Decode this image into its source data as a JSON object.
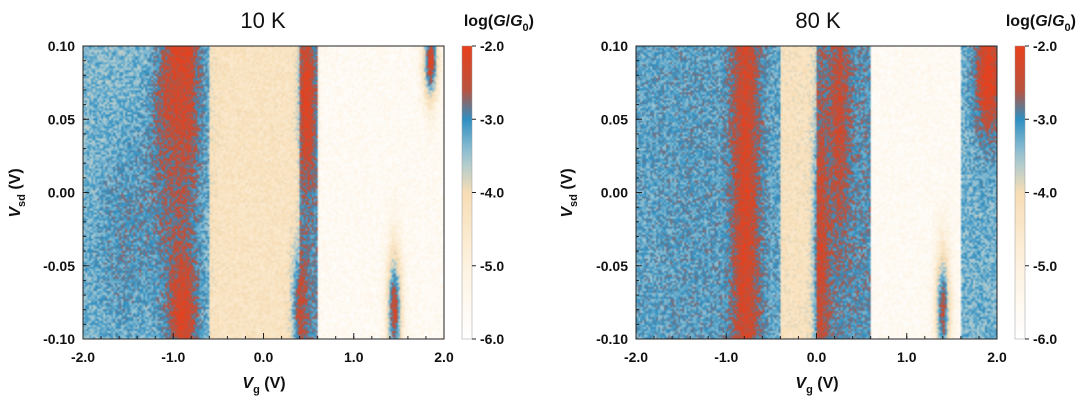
{
  "chart_data": [
    {
      "type": "heatmap",
      "title": "10 K",
      "xlabel": "V_g (V)",
      "ylabel": "V_sd (V)",
      "xlim": [
        -2.0,
        2.0
      ],
      "ylim": [
        -0.1,
        0.1
      ],
      "xticks": [
        "-2.0",
        "-1.0",
        "0.0",
        "1.0",
        "2.0"
      ],
      "yticks": [
        "-0.10",
        "-0.05",
        "0.00",
        "0.05",
        "0.10"
      ],
      "colorbar": {
        "title": "log(G/G0)",
        "range": [
          -6.0,
          -2.0
        ],
        "ticks": [
          "-2.0",
          "-3.0",
          "-4.0",
          "-5.0",
          "-6.0"
        ]
      },
      "features": [
        {
          "x": -0.95,
          "y": 0.05,
          "sigma_x": 0.16,
          "sigma_y": 0.04,
          "value": -2.0
        },
        {
          "x": -0.9,
          "y": 0.1,
          "sigma_x": 0.12,
          "sigma_y": 0.02,
          "value": -2.1
        },
        {
          "x": -1.0,
          "y": 0.0,
          "sigma_x": 0.18,
          "sigma_y": 0.05,
          "value": -2.6
        },
        {
          "x": -0.9,
          "y": -0.08,
          "sigma_x": 0.12,
          "sigma_y": 0.03,
          "value": -2.1
        },
        {
          "x": -1.5,
          "y": -0.03,
          "sigma_x": 0.3,
          "sigma_y": 0.05,
          "value": -3.0
        },
        {
          "x": 0.48,
          "y": 0.06,
          "sigma_x": 0.06,
          "sigma_y": 0.04,
          "value": -2.1
        },
        {
          "x": 0.4,
          "y": -0.08,
          "sigma_x": 0.06,
          "sigma_y": 0.03,
          "value": -2.4
        },
        {
          "x": 1.45,
          "y": -0.08,
          "sigma_x": 0.06,
          "sigma_y": 0.03,
          "value": -2.3
        },
        {
          "x": 1.85,
          "y": 0.09,
          "sigma_x": 0.06,
          "sigma_y": 0.02,
          "value": -2.1
        }
      ],
      "background": [
        {
          "x_from": -2.0,
          "x_to": -0.6,
          "value": -3.4
        },
        {
          "x_from": -0.6,
          "x_to": 0.4,
          "value": -4.3
        },
        {
          "x_from": 0.4,
          "x_to": 0.6,
          "value": -3.0
        },
        {
          "x_from": 0.6,
          "x_to": 2.0,
          "value": -5.6
        }
      ]
    },
    {
      "type": "heatmap",
      "title": "80 K",
      "xlabel": "V_g (V)",
      "ylabel": "V_sd (V)",
      "xlim": [
        -2.0,
        2.0
      ],
      "ylim": [
        -0.1,
        0.1
      ],
      "xticks": [
        "-2.0",
        "-1.0",
        "0.0",
        "1.0",
        "2.0"
      ],
      "yticks": [
        "-0.10",
        "-0.05",
        "0.00",
        "0.05",
        "0.10"
      ],
      "colorbar": {
        "title": "log(G/G0)",
        "range": [
          -6.0,
          -2.0
        ],
        "ticks": [
          "-2.0",
          "-3.0",
          "-4.0",
          "-5.0",
          "-6.0"
        ]
      },
      "features": [
        {
          "x": -0.8,
          "y": 0.0,
          "sigma_x": 0.12,
          "sigma_y": 0.2,
          "value": -2.1
        },
        {
          "x": 0.05,
          "y": -0.04,
          "sigma_x": 0.06,
          "sigma_y": 0.08,
          "value": -2.3
        },
        {
          "x": 0.25,
          "y": 0.05,
          "sigma_x": 0.08,
          "sigma_y": 0.06,
          "value": -2.4
        },
        {
          "x": 1.4,
          "y": -0.08,
          "sigma_x": 0.06,
          "sigma_y": 0.03,
          "value": -2.5
        },
        {
          "x": 1.9,
          "y": 0.08,
          "sigma_x": 0.1,
          "sigma_y": 0.03,
          "value": -2.0
        },
        {
          "x": -1.4,
          "y": 0.0,
          "sigma_x": 0.3,
          "sigma_y": 0.2,
          "value": -3.1
        }
      ],
      "background": [
        {
          "x_from": -2.0,
          "x_to": -0.4,
          "value": -3.2
        },
        {
          "x_from": -0.4,
          "x_to": 0.0,
          "value": -4.2
        },
        {
          "x_from": 0.0,
          "x_to": 0.6,
          "value": -3.0
        },
        {
          "x_from": 0.6,
          "x_to": 1.6,
          "value": -5.6
        },
        {
          "x_from": 1.6,
          "x_to": 2.0,
          "value": -3.3
        }
      ]
    }
  ],
  "colormap": {
    "stops": [
      {
        "value": -2.0,
        "color": "#e8401c"
      },
      {
        "value": -2.6,
        "color": "#b9533f"
      },
      {
        "value": -3.0,
        "color": "#2f8fc2"
      },
      {
        "value": -3.5,
        "color": "#9ec6d4"
      },
      {
        "value": -4.0,
        "color": "#f7ddb5"
      },
      {
        "value": -5.0,
        "color": "#fdf2e0"
      },
      {
        "value": -6.0,
        "color": "#ffffff"
      }
    ]
  }
}
